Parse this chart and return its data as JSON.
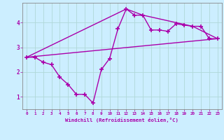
{
  "xlabel": "Windchill (Refroidissement éolien,°C)",
  "background_color": "#cceeff",
  "grid_color": "#b0d8d8",
  "line_color": "#aa00aa",
  "markersize": 5,
  "linewidth": 1.0,
  "xlim": [
    -0.5,
    23.5
  ],
  "ylim": [
    0.5,
    4.8
  ],
  "xticks": [
    0,
    1,
    2,
    3,
    4,
    5,
    6,
    7,
    8,
    9,
    10,
    11,
    12,
    13,
    14,
    15,
    16,
    17,
    18,
    19,
    20,
    21,
    22,
    23
  ],
  "yticks": [
    1,
    2,
    3,
    4
  ],
  "series1_x": [
    0,
    1,
    2,
    3,
    4,
    5,
    6,
    7,
    8,
    9,
    10,
    11,
    12,
    13,
    14,
    15,
    16,
    17,
    18,
    19,
    20,
    21,
    22,
    23
  ],
  "series1_y": [
    2.6,
    2.6,
    2.4,
    2.3,
    1.8,
    1.5,
    1.1,
    1.1,
    0.75,
    2.1,
    2.55,
    3.75,
    4.55,
    4.3,
    4.3,
    3.7,
    3.7,
    3.65,
    3.95,
    3.9,
    3.85,
    3.85,
    3.35,
    3.35
  ],
  "series2_x": [
    0,
    23
  ],
  "series2_y": [
    2.6,
    3.35
  ],
  "series3_x": [
    0,
    12,
    14,
    20,
    23
  ],
  "series3_y": [
    2.6,
    4.55,
    4.3,
    3.85,
    3.35
  ]
}
